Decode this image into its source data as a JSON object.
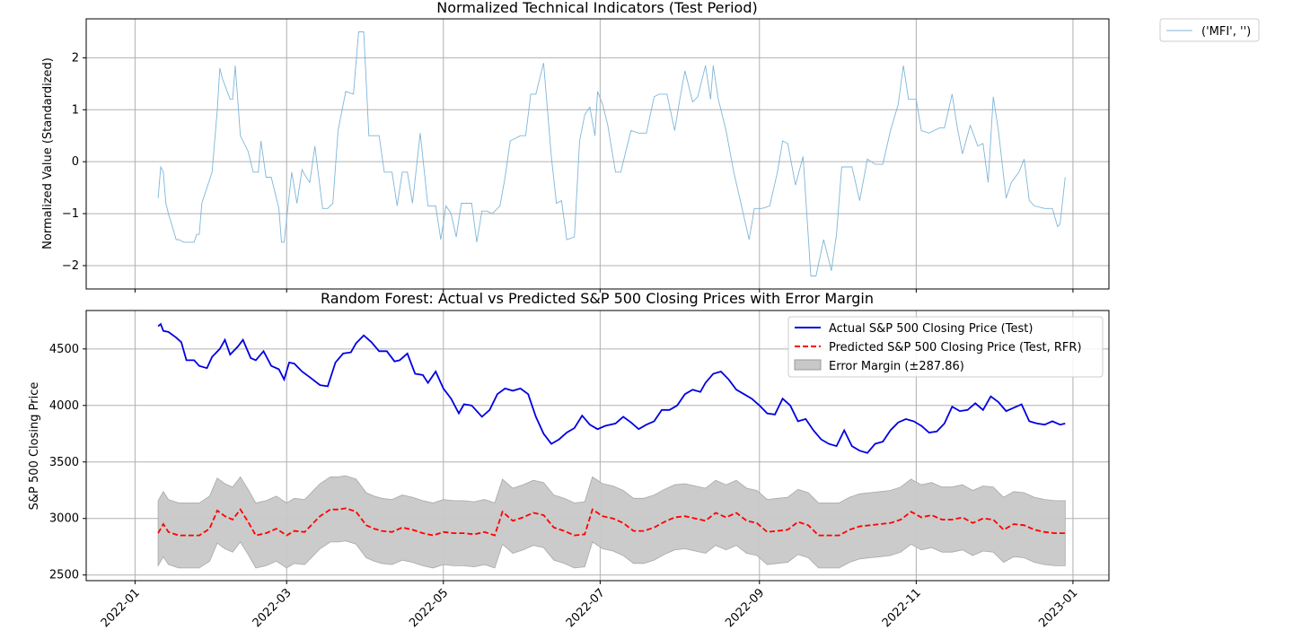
{
  "chart_data": [
    {
      "type": "line",
      "title": "Normalized Technical Indicators (Test Period)",
      "xlabel": "",
      "ylabel": "Normalized Value (Standardized)",
      "ylim": [
        -2.45,
        2.75
      ],
      "yticks": [
        2,
        1,
        0,
        -1,
        -2
      ],
      "yticklabels": [
        "2",
        "1",
        "0",
        "−1",
        "−2"
      ],
      "grid": true,
      "legend_position": "outside-top-right",
      "colors": {
        "MFI": "#7fb6d9"
      },
      "series": [
        {
          "name": "('MFI', '')",
          "x": [
            "2022-01-10",
            "2022-01-11",
            "2022-01-12",
            "2022-01-13",
            "2022-01-14",
            "2022-01-17",
            "2022-01-18",
            "2022-01-20",
            "2022-01-24",
            "2022-01-25",
            "2022-01-26",
            "2022-01-27",
            "2022-01-31",
            "2022-02-02",
            "2022-02-03",
            "2022-02-04",
            "2022-02-07",
            "2022-02-08",
            "2022-02-09",
            "2022-02-11",
            "2022-02-14",
            "2022-02-16",
            "2022-02-18",
            "2022-02-19",
            "2022-02-21",
            "2022-02-23",
            "2022-02-26",
            "2022-02-27",
            "2022-02-28",
            "2022-03-03",
            "2022-03-05",
            "2022-03-07",
            "2022-03-08",
            "2022-03-10",
            "2022-03-12",
            "2022-03-15",
            "2022-03-17",
            "2022-03-19",
            "2022-03-21",
            "2022-03-24",
            "2022-03-27",
            "2022-03-29",
            "2022-03-31",
            "2022-04-02",
            "2022-04-04",
            "2022-04-06",
            "2022-04-08",
            "2022-04-11",
            "2022-04-13",
            "2022-04-15",
            "2022-04-17",
            "2022-04-19",
            "2022-04-22",
            "2022-04-25",
            "2022-04-28",
            "2022-04-30",
            "2022-05-02",
            "2022-05-04",
            "2022-05-06",
            "2022-05-08",
            "2022-05-12",
            "2022-05-14",
            "2022-05-16",
            "2022-05-18",
            "2022-05-20",
            "2022-05-23",
            "2022-05-25",
            "2022-05-27",
            "2022-05-31",
            "2022-06-02",
            "2022-06-04",
            "2022-06-06",
            "2022-06-09",
            "2022-06-12",
            "2022-06-14",
            "2022-06-16",
            "2022-06-18",
            "2022-06-21",
            "2022-06-23",
            "2022-06-25",
            "2022-06-27",
            "2022-06-29",
            "2022-06-30",
            "2022-07-02",
            "2022-07-04",
            "2022-07-07",
            "2022-07-09",
            "2022-07-13",
            "2022-07-16",
            "2022-07-19",
            "2022-07-22",
            "2022-07-24",
            "2022-07-27",
            "2022-07-30",
            "2022-08-01",
            "2022-08-03",
            "2022-08-06",
            "2022-08-08",
            "2022-08-11",
            "2022-08-13",
            "2022-08-14",
            "2022-08-16",
            "2022-08-19",
            "2022-08-22",
            "2022-08-25",
            "2022-08-28",
            "2022-08-30",
            "2022-09-02",
            "2022-09-05",
            "2022-09-08",
            "2022-09-10",
            "2022-09-12",
            "2022-09-15",
            "2022-09-18",
            "2022-09-21",
            "2022-09-23",
            "2022-09-26",
            "2022-09-29",
            "2022-10-01",
            "2022-10-03",
            "2022-10-07",
            "2022-10-10",
            "2022-10-13",
            "2022-10-16",
            "2022-10-19",
            "2022-10-22",
            "2022-10-25",
            "2022-10-27",
            "2022-10-29",
            "2022-11-01",
            "2022-11-03",
            "2022-11-06",
            "2022-11-08",
            "2022-11-10",
            "2022-11-12",
            "2022-11-15",
            "2022-11-17",
            "2022-11-19",
            "2022-11-22",
            "2022-11-25",
            "2022-11-27",
            "2022-11-29",
            "2022-12-01",
            "2022-12-03",
            "2022-12-06",
            "2022-12-08",
            "2022-12-11",
            "2022-12-13",
            "2022-12-15",
            "2022-12-17",
            "2022-12-21",
            "2022-12-24",
            "2022-12-26",
            "2022-12-27",
            "2022-12-29"
          ],
          "y": [
            -0.7,
            -0.1,
            -0.2,
            -0.8,
            -1.0,
            -1.5,
            -1.5,
            -1.55,
            -1.55,
            -1.4,
            -1.4,
            -0.8,
            -0.2,
            1.0,
            1.8,
            1.6,
            1.2,
            1.2,
            1.85,
            0.5,
            0.2,
            -0.2,
            -0.2,
            0.4,
            -0.3,
            -0.3,
            -0.9,
            -1.55,
            -1.55,
            -0.2,
            -0.8,
            -0.15,
            -0.25,
            -0.4,
            0.3,
            -0.9,
            -0.9,
            -0.8,
            0.6,
            1.35,
            1.3,
            2.5,
            2.5,
            0.5,
            0.5,
            0.5,
            -0.2,
            -0.2,
            -0.85,
            -0.2,
            -0.2,
            -0.8,
            0.55,
            -0.85,
            -0.85,
            -1.5,
            -0.85,
            -1.0,
            -1.45,
            -0.8,
            -0.8,
            -1.55,
            -0.95,
            -0.95,
            -1.0,
            -0.85,
            -0.3,
            0.4,
            0.5,
            0.5,
            1.3,
            1.3,
            1.9,
            0.1,
            -0.8,
            -0.75,
            -1.5,
            -1.45,
            0.4,
            0.9,
            1.05,
            0.5,
            1.35,
            1.1,
            0.7,
            -0.2,
            -0.2,
            0.6,
            0.55,
            0.55,
            1.25,
            1.3,
            1.3,
            0.6,
            1.2,
            1.75,
            1.15,
            1.25,
            1.85,
            1.2,
            1.85,
            1.2,
            0.6,
            -0.2,
            -0.85,
            -1.5,
            -0.9,
            -0.9,
            -0.85,
            -0.2,
            0.4,
            0.35,
            -0.45,
            0.1,
            -2.2,
            -2.2,
            -1.5,
            -2.1,
            -1.4,
            -0.1,
            -0.1,
            -0.75,
            0.05,
            -0.05,
            -0.05,
            0.6,
            1.1,
            1.85,
            1.2,
            1.2,
            0.6,
            0.55,
            0.6,
            0.65,
            0.65,
            1.3,
            0.65,
            0.15,
            0.7,
            0.3,
            0.35,
            -0.4,
            1.25,
            0.6,
            -0.7,
            -0.4,
            -0.2,
            0.05,
            -0.75,
            -0.85,
            -0.9,
            -0.9,
            -1.25,
            -1.2,
            -0.3
          ]
        }
      ]
    },
    {
      "type": "line",
      "title": "Random Forest: Actual vs Predicted S&P 500 Closing Prices with Error Margin",
      "xlabel": "",
      "ylabel": "S&P 500 Closing Price",
      "ylim": [
        2450,
        4840
      ],
      "yticks": [
        4500,
        4000,
        3500,
        3000,
        2500
      ],
      "yticklabels": [
        "4500",
        "4000",
        "3500",
        "3000",
        "2500"
      ],
      "xticks": [
        "2022-01",
        "2022-03",
        "2022-05",
        "2022-07",
        "2022-09",
        "2022-11",
        "2023-01"
      ],
      "grid": true,
      "legend_position": "top-right",
      "error_margin": 287.86,
      "colors": {
        "actual": "#0000e0",
        "predicted": "#ff0000",
        "margin": "#c8c8c8"
      },
      "series": [
        {
          "name": "Actual S&P 500 Closing Price (Test)",
          "style": "solid",
          "x": [
            "2022-01-10",
            "2022-01-11",
            "2022-01-12",
            "2022-01-14",
            "2022-01-17",
            "2022-01-19",
            "2022-01-21",
            "2022-01-24",
            "2022-01-26",
            "2022-01-29",
            "2022-01-31",
            "2022-02-03",
            "2022-02-05",
            "2022-02-07",
            "2022-02-10",
            "2022-02-12",
            "2022-02-15",
            "2022-02-17",
            "2022-02-20",
            "2022-02-23",
            "2022-02-26",
            "2022-02-28",
            "2022-03-02",
            "2022-03-04",
            "2022-03-07",
            "2022-03-10",
            "2022-03-14",
            "2022-03-17",
            "2022-03-20",
            "2022-03-23",
            "2022-03-26",
            "2022-03-28",
            "2022-03-31",
            "2022-04-03",
            "2022-04-06",
            "2022-04-09",
            "2022-04-12",
            "2022-04-14",
            "2022-04-17",
            "2022-04-20",
            "2022-04-23",
            "2022-04-25",
            "2022-04-28",
            "2022-05-01",
            "2022-05-04",
            "2022-05-07",
            "2022-05-09",
            "2022-05-12",
            "2022-05-16",
            "2022-05-19",
            "2022-05-22",
            "2022-05-25",
            "2022-05-28",
            "2022-05-31",
            "2022-06-03",
            "2022-06-06",
            "2022-06-09",
            "2022-06-12",
            "2022-06-15",
            "2022-06-18",
            "2022-06-21",
            "2022-06-24",
            "2022-06-27",
            "2022-06-30",
            "2022-07-03",
            "2022-07-07",
            "2022-07-10",
            "2022-07-13",
            "2022-07-16",
            "2022-07-19",
            "2022-07-22",
            "2022-07-25",
            "2022-07-28",
            "2022-07-31",
            "2022-08-03",
            "2022-08-06",
            "2022-08-09",
            "2022-08-11",
            "2022-08-14",
            "2022-08-17",
            "2022-08-20",
            "2022-08-23",
            "2022-08-26",
            "2022-08-29",
            "2022-09-01",
            "2022-09-04",
            "2022-09-07",
            "2022-09-10",
            "2022-09-13",
            "2022-09-16",
            "2022-09-19",
            "2022-09-22",
            "2022-09-25",
            "2022-09-28",
            "2022-10-01",
            "2022-10-04",
            "2022-10-07",
            "2022-10-10",
            "2022-10-13",
            "2022-10-16",
            "2022-10-19",
            "2022-10-22",
            "2022-10-25",
            "2022-10-28",
            "2022-10-31",
            "2022-11-03",
            "2022-11-06",
            "2022-11-09",
            "2022-11-12",
            "2022-11-15",
            "2022-11-18",
            "2022-11-21",
            "2022-11-24",
            "2022-11-27",
            "2022-11-30",
            "2022-12-03",
            "2022-12-06",
            "2022-12-09",
            "2022-12-12",
            "2022-12-15",
            "2022-12-18",
            "2022-12-21",
            "2022-12-24",
            "2022-12-27",
            "2022-12-29"
          ],
          "y": [
            4700,
            4720,
            4660,
            4650,
            4600,
            4560,
            4400,
            4400,
            4350,
            4330,
            4430,
            4500,
            4580,
            4450,
            4520,
            4580,
            4420,
            4400,
            4480,
            4350,
            4320,
            4230,
            4380,
            4370,
            4300,
            4250,
            4180,
            4170,
            4380,
            4460,
            4470,
            4550,
            4620,
            4560,
            4480,
            4480,
            4390,
            4400,
            4460,
            4280,
            4270,
            4200,
            4300,
            4150,
            4060,
            3930,
            4010,
            4000,
            3900,
            3960,
            4100,
            4150,
            4130,
            4150,
            4100,
            3900,
            3750,
            3660,
            3700,
            3760,
            3800,
            3910,
            3830,
            3790,
            3820,
            3840,
            3900,
            3850,
            3790,
            3830,
            3860,
            3960,
            3960,
            4000,
            4100,
            4140,
            4120,
            4200,
            4280,
            4300,
            4230,
            4140,
            4100,
            4060,
            4000,
            3930,
            3920,
            4060,
            4000,
            3860,
            3880,
            3780,
            3700,
            3660,
            3640,
            3780,
            3640,
            3600,
            3580,
            3660,
            3680,
            3780,
            3850,
            3880,
            3860,
            3820,
            3760,
            3770,
            3840,
            3990,
            3950,
            3960,
            4020,
            3960,
            4080,
            4030,
            3950,
            3980,
            4010,
            3860,
            3840,
            3830,
            3860,
            3830,
            3840
          ]
        },
        {
          "name": "Predicted S&P 500 Closing Price (Test, RFR)",
          "style": "dashed",
          "x": [
            "2022-01-10",
            "2022-01-12",
            "2022-01-14",
            "2022-01-18",
            "2022-01-22",
            "2022-01-26",
            "2022-01-30",
            "2022-02-02",
            "2022-02-05",
            "2022-02-08",
            "2022-02-11",
            "2022-02-14",
            "2022-02-17",
            "2022-02-21",
            "2022-02-25",
            "2022-03-01",
            "2022-03-04",
            "2022-03-08",
            "2022-03-11",
            "2022-03-14",
            "2022-03-18",
            "2022-03-21",
            "2022-03-24",
            "2022-03-28",
            "2022-04-01",
            "2022-04-04",
            "2022-04-07",
            "2022-04-11",
            "2022-04-15",
            "2022-04-19",
            "2022-04-23",
            "2022-04-27",
            "2022-05-01",
            "2022-05-05",
            "2022-05-09",
            "2022-05-13",
            "2022-05-17",
            "2022-05-21",
            "2022-05-24",
            "2022-05-28",
            "2022-06-01",
            "2022-06-05",
            "2022-06-09",
            "2022-06-13",
            "2022-06-17",
            "2022-06-21",
            "2022-06-25",
            "2022-06-28",
            "2022-07-02",
            "2022-07-06",
            "2022-07-10",
            "2022-07-14",
            "2022-07-18",
            "2022-07-22",
            "2022-07-26",
            "2022-07-30",
            "2022-08-03",
            "2022-08-07",
            "2022-08-11",
            "2022-08-15",
            "2022-08-19",
            "2022-08-23",
            "2022-08-27",
            "2022-08-31",
            "2022-09-04",
            "2022-09-08",
            "2022-09-12",
            "2022-09-16",
            "2022-09-20",
            "2022-09-24",
            "2022-09-28",
            "2022-10-02",
            "2022-10-06",
            "2022-10-10",
            "2022-10-14",
            "2022-10-18",
            "2022-10-22",
            "2022-10-26",
            "2022-10-30",
            "2022-11-03",
            "2022-11-07",
            "2022-11-11",
            "2022-11-15",
            "2022-11-19",
            "2022-11-23",
            "2022-11-27",
            "2022-12-01",
            "2022-12-05",
            "2022-12-09",
            "2022-12-13",
            "2022-12-17",
            "2022-12-21",
            "2022-12-25",
            "2022-12-29"
          ],
          "y": [
            2870,
            2950,
            2880,
            2850,
            2850,
            2850,
            2910,
            3070,
            3020,
            2990,
            3080,
            2970,
            2850,
            2870,
            2910,
            2850,
            2890,
            2880,
            2950,
            3020,
            3080,
            3080,
            3090,
            3060,
            2940,
            2910,
            2890,
            2880,
            2920,
            2900,
            2870,
            2850,
            2880,
            2870,
            2870,
            2860,
            2880,
            2850,
            3060,
            2980,
            3010,
            3050,
            3030,
            2920,
            2890,
            2850,
            2860,
            3080,
            3020,
            3000,
            2960,
            2890,
            2890,
            2920,
            2970,
            3010,
            3020,
            3000,
            2980,
            3050,
            3010,
            3050,
            2980,
            2960,
            2880,
            2890,
            2900,
            2970,
            2940,
            2850,
            2850,
            2850,
            2900,
            2930,
            2940,
            2950,
            2960,
            2990,
            3060,
            3010,
            3030,
            2990,
            2990,
            3010,
            2960,
            3000,
            2990,
            2900,
            2950,
            2940,
            2900,
            2880,
            2870,
            2870
          ]
        },
        {
          "name": "Error Margin (±287.86)",
          "style": "band"
        }
      ]
    }
  ],
  "legend_top": {
    "label": "('MFI', '')"
  },
  "legend_bottom": {
    "actual": "Actual S&P 500 Closing Price (Test)",
    "predicted": "Predicted S&P 500 Closing Price (Test, RFR)",
    "margin": "Error Margin (±287.86)"
  }
}
